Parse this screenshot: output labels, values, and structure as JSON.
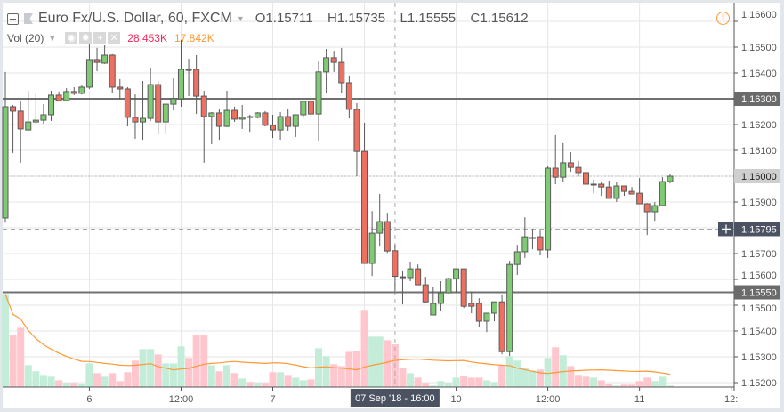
{
  "legend": {
    "symbol": "Euro Fx/U.S. Dollar, 60, FXCM",
    "open": "O1.15711",
    "high": "H1.15735",
    "low": "L1.15555",
    "close": "C1.15612",
    "volume_label": "Vol (20)",
    "volume_value": "28.453K",
    "volume_ma_value": "17.842K",
    "volume_buttons": [
      "eye-icon",
      "gear-icon",
      "plus-icon",
      "close-icon"
    ]
  },
  "colors": {
    "up": "#7ecb74",
    "down": "#ef6f60",
    "wick": "#5a5a5a",
    "volume_up": "#c3ecd9",
    "volume_down": "#ffc6ce",
    "volume_value": "#f0285a",
    "volume_ma": "#ff9834",
    "level_line": "#707070",
    "crosshair_label": "#4b5261",
    "alert": "#ff9834"
  },
  "chart_data": {
    "type": "candlestick",
    "ylim": [
      1.152,
      1.166
    ],
    "y_ticks": [
      "1.16600",
      "1.16500",
      "1.16400",
      "1.16300",
      "1.16200",
      "1.16100",
      "1.16000",
      "1.15900",
      "1.15795",
      "1.15700",
      "1.15600",
      "1.15550",
      "1.15500",
      "1.15400",
      "1.15300",
      "1.15200"
    ],
    "y_grid": [
      1.166,
      1.165,
      1.164,
      1.163,
      1.162,
      1.161,
      1.16,
      1.159,
      1.158,
      1.157,
      1.156,
      1.155,
      1.154,
      1.153,
      1.152
    ],
    "x_ticks": [
      {
        "index": 11,
        "label": "6"
      },
      {
        "index": 23,
        "label": "12:00"
      },
      {
        "index": 35,
        "label": "7"
      },
      {
        "index": 59,
        "label": "10"
      },
      {
        "index": 71,
        "label": "12:00"
      },
      {
        "index": 83,
        "label": "11"
      },
      {
        "index": 95,
        "label": "12:"
      }
    ],
    "horizontal_levels": [
      {
        "price": 1.163,
        "label": "1.16300"
      },
      {
        "price": 1.1555,
        "label": "1.15550"
      }
    ],
    "last_price": {
      "price": 1.16,
      "label": "1.16000"
    },
    "crosshair": {
      "index": 51,
      "price": 1.15795,
      "price_label": "1.15795",
      "time_label": "07 Sep '18 - 16:00"
    },
    "volume_ma_period": 20,
    "volume_unit": "K",
    "ohlc": [
      [
        1.15838,
        1.16404,
        1.1582,
        1.16269
      ],
      [
        1.16269,
        1.16276,
        1.1609,
        1.16252
      ],
      [
        1.16252,
        1.16293,
        1.16052,
        1.16183
      ],
      [
        1.16179,
        1.16331,
        1.16176,
        1.1621
      ],
      [
        1.1621,
        1.16321,
        1.16203,
        1.16217
      ],
      [
        1.16217,
        1.16279,
        1.16203,
        1.16238
      ],
      [
        1.16238,
        1.16331,
        1.16214,
        1.16314
      ],
      [
        1.16314,
        1.16328,
        1.16293,
        1.16293
      ],
      [
        1.16293,
        1.16341,
        1.1629,
        1.16328
      ],
      [
        1.16328,
        1.16345,
        1.16314,
        1.16321
      ],
      [
        1.16321,
        1.16352,
        1.16317,
        1.16345
      ],
      [
        1.16345,
        1.16528,
        1.16338,
        1.16452
      ],
      [
        1.16452,
        1.16497,
        1.16407,
        1.16441
      ],
      [
        1.16438,
        1.16507,
        1.16435,
        1.16469
      ],
      [
        1.16469,
        1.16473,
        1.16321,
        1.16345
      ],
      [
        1.16345,
        1.16376,
        1.16297,
        1.16338
      ],
      [
        1.16338,
        1.16345,
        1.16193,
        1.16228
      ],
      [
        1.16228,
        1.16317,
        1.16145,
        1.1621
      ],
      [
        1.1621,
        1.16369,
        1.16141,
        1.16224
      ],
      [
        1.16224,
        1.16421,
        1.16214,
        1.16355
      ],
      [
        1.16355,
        1.16369,
        1.16162,
        1.1621
      ],
      [
        1.1621,
        1.16279,
        1.16162,
        1.16279
      ],
      [
        1.16279,
        1.16379,
        1.16255,
        1.163
      ],
      [
        1.163,
        1.16528,
        1.16269,
        1.16414
      ],
      [
        1.16414,
        1.16455,
        1.1631,
        1.1641
      ],
      [
        1.16414,
        1.16469,
        1.16241,
        1.1631
      ],
      [
        1.1631,
        1.16331,
        1.16052,
        1.16231
      ],
      [
        1.16231,
        1.16248,
        1.16124,
        1.16245
      ],
      [
        1.16245,
        1.16259,
        1.16141,
        1.16193
      ],
      [
        1.16193,
        1.16331,
        1.1619,
        1.16255
      ],
      [
        1.16255,
        1.16269,
        1.1621,
        1.16221
      ],
      [
        1.16221,
        1.16276,
        1.16183,
        1.16228
      ],
      [
        1.16231,
        1.16238,
        1.16172,
        1.16228
      ],
      [
        1.16228,
        1.16248,
        1.16224,
        1.16245
      ],
      [
        1.16245,
        1.16252,
        1.16193,
        1.16197
      ],
      [
        1.16197,
        1.16238,
        1.16148,
        1.16179
      ],
      [
        1.16179,
        1.16248,
        1.16141,
        1.16231
      ],
      [
        1.16231,
        1.16262,
        1.16176,
        1.16193
      ],
      [
        1.16193,
        1.16238,
        1.16152,
        1.16238
      ],
      [
        1.16238,
        1.1629,
        1.16231,
        1.1629
      ],
      [
        1.1629,
        1.1631,
        1.16214,
        1.16241
      ],
      [
        1.16241,
        1.16448,
        1.16138,
        1.16404
      ],
      [
        1.16404,
        1.16493,
        1.16324,
        1.16459
      ],
      [
        1.16459,
        1.16486,
        1.16404,
        1.16441
      ],
      [
        1.16441,
        1.16497,
        1.16321,
        1.16362
      ],
      [
        1.16362,
        1.1639,
        1.16224,
        1.16259
      ],
      [
        1.16259,
        1.16283,
        1.16,
        1.16096
      ],
      [
        1.16096,
        1.16207,
        1.15662,
        1.15662
      ],
      [
        1.15662,
        1.15865,
        1.15613,
        1.15779
      ],
      [
        1.15779,
        1.15931,
        1.15727,
        1.15824
      ],
      [
        1.15824,
        1.15858,
        1.15703,
        1.1571
      ],
      [
        1.15711,
        1.15735,
        1.15555,
        1.15612
      ],
      [
        1.1561,
        1.15631,
        1.15503,
        1.15607
      ],
      [
        1.15607,
        1.15669,
        1.15593,
        1.15641
      ],
      [
        1.15641,
        1.15658,
        1.15579,
        1.15579
      ],
      [
        1.15579,
        1.1561,
        1.15507,
        1.15513
      ],
      [
        1.15462,
        1.15572,
        1.15462,
        1.15507
      ],
      [
        1.15507,
        1.15593,
        1.15476,
        1.15548
      ],
      [
        1.15548,
        1.15607,
        1.15545,
        1.15603
      ],
      [
        1.15603,
        1.15641,
        1.15548,
        1.15641
      ],
      [
        1.15641,
        1.15641,
        1.15489,
        1.15496
      ],
      [
        1.15507,
        1.15552,
        1.15469,
        1.15496
      ],
      [
        1.15507,
        1.15527,
        1.15417,
        1.15438
      ],
      [
        1.15438,
        1.15469,
        1.15396,
        1.15469
      ],
      [
        1.15469,
        1.15513,
        1.15438,
        1.15513
      ],
      [
        1.15513,
        1.15538,
        1.1531,
        1.1532
      ],
      [
        1.1532,
        1.15672,
        1.15303,
        1.15658
      ],
      [
        1.15658,
        1.15734,
        1.15617,
        1.15707
      ],
      [
        1.15707,
        1.15841,
        1.15683,
        1.15765
      ],
      [
        1.15762,
        1.15796,
        1.15717,
        1.15762
      ],
      [
        1.15765,
        1.15789,
        1.15693,
        1.15714
      ],
      [
        1.15714,
        1.16041,
        1.15683,
        1.16031
      ],
      [
        1.16031,
        1.16159,
        1.15969,
        1.15996
      ],
      [
        1.15996,
        1.16128,
        1.15976,
        1.16052
      ],
      [
        1.16052,
        1.16093,
        1.16017,
        1.16034
      ],
      [
        1.16034,
        1.16059,
        1.16,
        1.16014
      ],
      [
        1.16014,
        1.16034,
        1.15962,
        1.15969
      ],
      [
        1.15969,
        1.15986,
        1.15934,
        1.15969
      ],
      [
        1.15969,
        1.15976,
        1.15924,
        1.15958
      ],
      [
        1.15958,
        1.15983,
        1.15914,
        1.15914
      ],
      [
        1.15914,
        1.15979,
        1.159,
        1.15962
      ],
      [
        1.15962,
        1.15962,
        1.15924,
        1.15941
      ],
      [
        1.15941,
        1.15958,
        1.15931,
        1.15931
      ],
      [
        1.15934,
        1.15993,
        1.15893,
        1.15893
      ],
      [
        1.15893,
        1.15896,
        1.15772,
        1.15862
      ],
      [
        1.15862,
        1.159,
        1.15827,
        1.15886
      ],
      [
        1.15886,
        1.15996,
        1.15886,
        1.15979
      ],
      [
        1.15979,
        1.1601,
        1.15972,
        1.16
      ]
    ],
    "volume": [
      62,
      34.8,
      39.5,
      14.6,
      10.5,
      8.1,
      6.9,
      4.5,
      2.8,
      2.8,
      2.0,
      15.8,
      9.3,
      6.9,
      9.3,
      4.0,
      9.9,
      17.6,
      25.3,
      25.3,
      21.7,
      15.8,
      15.8,
      27.1,
      19.4,
      34.8,
      34.8,
      14.6,
      10.5,
      14.6,
      9.3,
      5.7,
      3.4,
      2.8,
      2.8,
      9.9,
      9.9,
      8.1,
      6.3,
      4.5,
      5.1,
      25.9,
      20.6,
      15.2,
      14.0,
      23.5,
      24.1,
      51.4,
      33.6,
      33.6,
      31.2,
      28.453,
      12.8,
      9.3,
      6.3,
      2.8,
      1.0,
      4.0,
      2.8,
      6.3,
      7.5,
      6.3,
      6.3,
      4.5,
      3.4,
      14.6,
      20.6,
      17.6,
      12.8,
      11.1,
      11.7,
      19.4,
      26.5,
      21.2,
      14.0,
      8.1,
      6.9,
      6.3,
      4.5,
      2.2,
      1.0,
      1.6,
      1.6,
      4.0,
      6.3,
      4.0,
      6.9,
      1.0
    ]
  }
}
